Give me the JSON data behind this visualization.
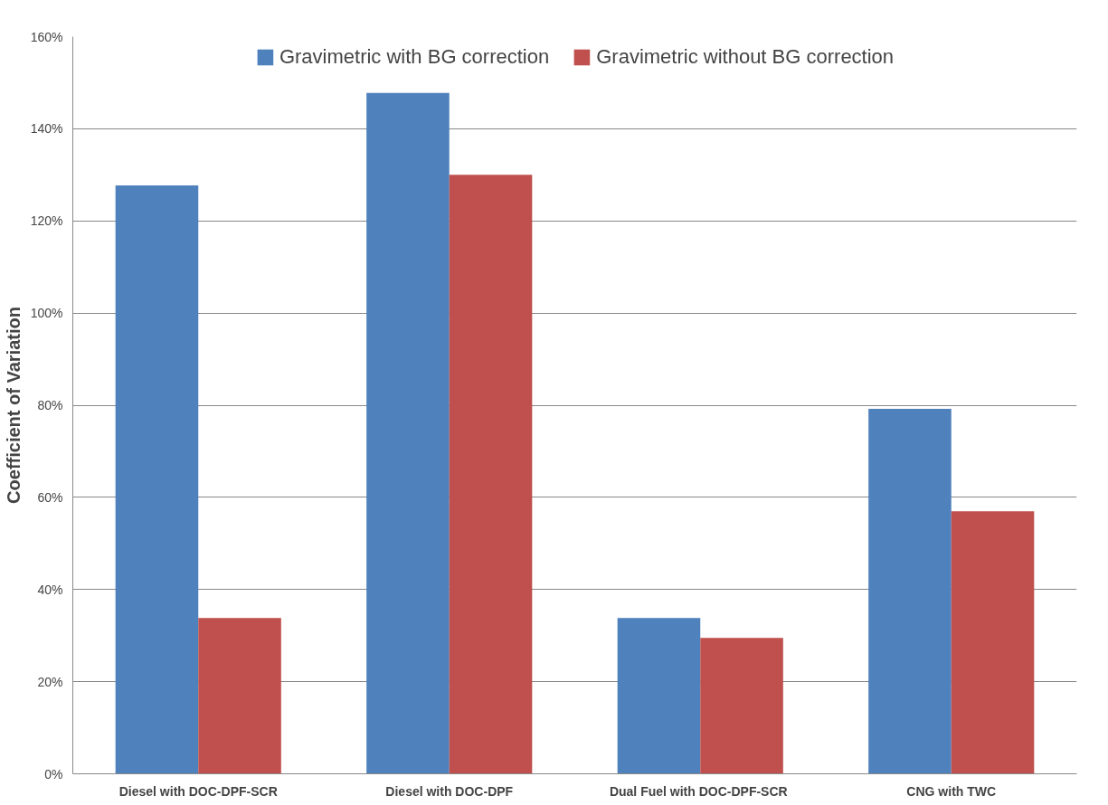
{
  "chart_data": {
    "type": "bar",
    "ylabel": "Coefficient of Variation",
    "categories": [
      "Diesel with DOC-DPF-SCR",
      "Diesel with DOC-DPF",
      "Dual Fuel with  DOC-DPF-SCR",
      "CNG with TWC"
    ],
    "series": [
      {
        "name": "Gravimetric with BG correction",
        "color": "#4f81bd",
        "values": [
          127.7,
          147.8,
          33.8,
          79.2
        ]
      },
      {
        "name": "Gravimetric without BG correction",
        "color": "#c0504d",
        "values": [
          33.8,
          130.0,
          29.5,
          57.0
        ]
      }
    ],
    "ylim": [
      0,
      160
    ],
    "yticks": [
      {
        "value": 0,
        "label": "0%"
      },
      {
        "value": 20,
        "label": "20%"
      },
      {
        "value": 40,
        "label": "40%"
      },
      {
        "value": 60,
        "label": "60%"
      },
      {
        "value": 80,
        "label": "80%"
      },
      {
        "value": 100,
        "label": "100%"
      },
      {
        "value": 120,
        "label": "120%"
      },
      {
        "value": 140,
        "label": "140%"
      },
      {
        "value": 160,
        "label": "160%"
      }
    ],
    "grid": "y",
    "legend": "top"
  }
}
